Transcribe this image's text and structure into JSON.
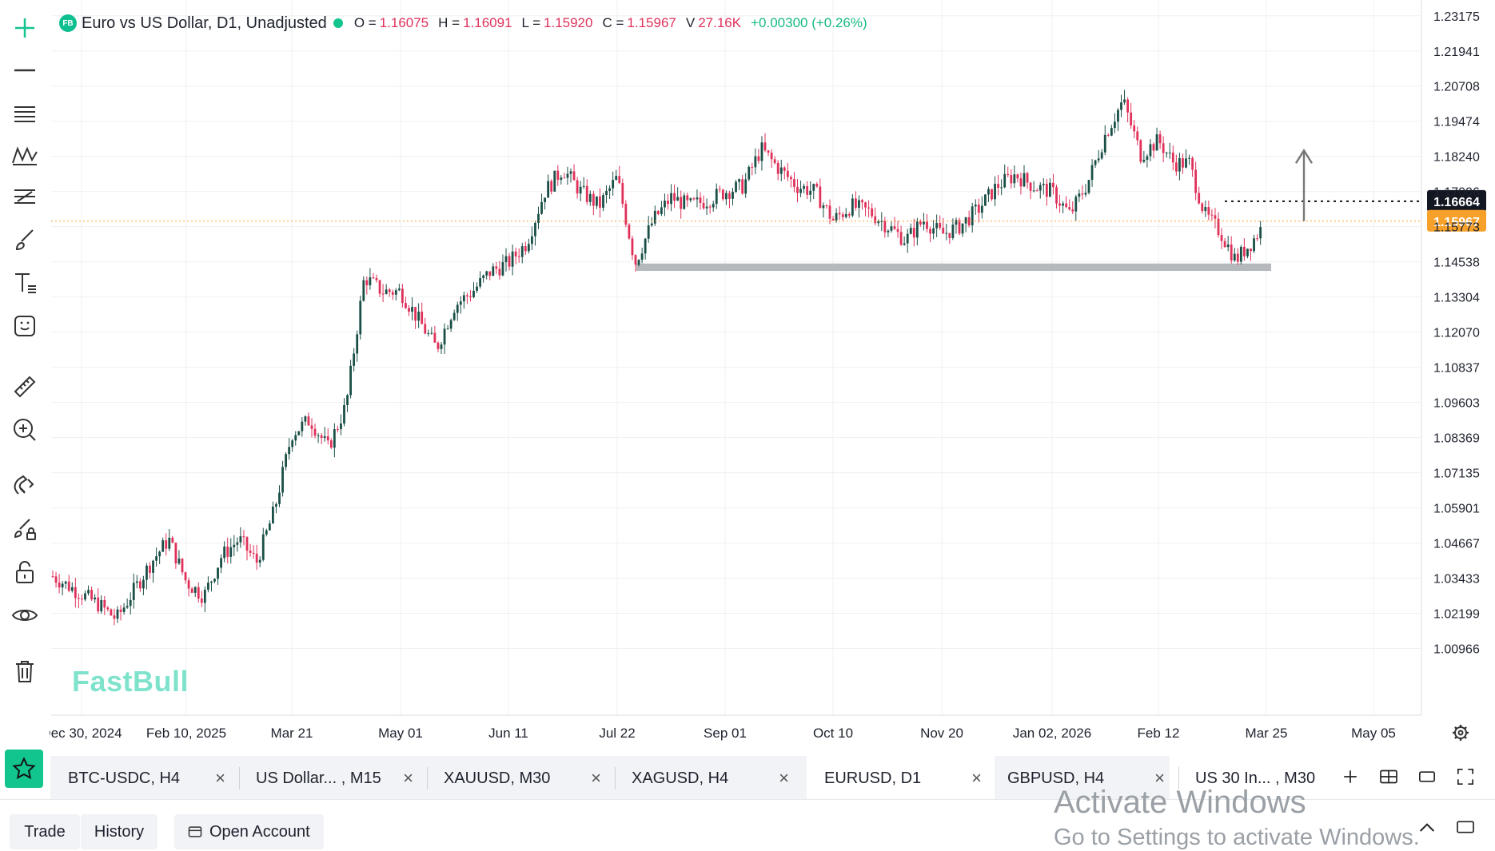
{
  "chart_data": {
    "type": "candlestick",
    "symbol_badge": "FB",
    "title": "Euro vs US Dollar, D1, Unadjusted",
    "ohlc": {
      "o_label": "O =",
      "o": "1.16075",
      "h_label": "H =",
      "h": "1.16091",
      "l_label": "L =",
      "l": "1.15920",
      "c_label": "C =",
      "c": "1.15967",
      "v_label": "V",
      "v": "27.16K",
      "change": "+0.00300 (+0.26%)"
    },
    "y_ticks": [
      "1.23175",
      "1.21941",
      "1.20708",
      "1.19474",
      "1.18240",
      "1.17006",
      "1.15773",
      "1.14538",
      "1.13304",
      "1.12070",
      "1.10837",
      "1.09603",
      "1.08369",
      "1.07135",
      "1.05901",
      "1.04667",
      "1.03433",
      "1.02199",
      "1.00966"
    ],
    "ylim": [
      0.9983,
      1.2345
    ],
    "x_ticks": [
      "Dec 30, 2024",
      "Feb 10, 2025",
      "Mar 21",
      "May 01",
      "Jun 11",
      "Jul 22",
      "Sep 01",
      "Oct 10",
      "Nov 20",
      "Jan 02, 2026",
      "Feb 12",
      "Mar 25",
      "May 05"
    ],
    "price_labels": {
      "target": "1.16664",
      "last": "1.15967"
    },
    "support_zone": {
      "from": "Jul 22",
      "to": "Mar 25",
      "low": 1.1422,
      "high": 1.1448
    },
    "arrow": {
      "at": "May 05",
      "from": 1.1597,
      "to": 1.1845
    },
    "path": [
      [
        "Dec 30, 2024",
        1.035
      ],
      [
        "Jan 06",
        1.025
      ],
      [
        "Jan 13",
        1.02
      ],
      [
        "Jan 20",
        1.03
      ],
      [
        "Jan 27",
        1.04
      ],
      [
        "Feb 03",
        1.048
      ],
      [
        "Feb 10, 2025",
        1.033
      ],
      [
        "Feb 17",
        1.028
      ],
      [
        "Feb 24",
        1.042
      ],
      [
        "Mar 03",
        1.048
      ],
      [
        "Mar 10",
        1.04
      ],
      [
        "Mar 17",
        1.058
      ],
      [
        "Mar 21",
        1.085
      ],
      [
        "Mar 28",
        1.09
      ],
      [
        "Apr 04",
        1.08
      ],
      [
        "Apr 11",
        1.095
      ],
      [
        "Apr 18",
        1.14
      ],
      [
        "Apr 25",
        1.135
      ],
      [
        "May 01",
        1.135
      ],
      [
        "May 08",
        1.125
      ],
      [
        "May 15",
        1.115
      ],
      [
        "May 22",
        1.13
      ],
      [
        "May 29",
        1.135
      ],
      [
        "Jun 05",
        1.142
      ],
      [
        "Jun 11",
        1.145
      ],
      [
        "Jun 18",
        1.152
      ],
      [
        "Jun 25",
        1.17
      ],
      [
        "Jul 02",
        1.178
      ],
      [
        "Jul 09",
        1.17
      ],
      [
        "Jul 16",
        1.165
      ],
      [
        "Jul 22",
        1.175
      ],
      [
        "Jul 29",
        1.145
      ],
      [
        "Aug 05",
        1.16
      ],
      [
        "Aug 12",
        1.168
      ],
      [
        "Aug 19",
        1.165
      ],
      [
        "Aug 26",
        1.167
      ],
      [
        "Sep 01",
        1.17
      ],
      [
        "Sep 08",
        1.172
      ],
      [
        "Sep 15",
        1.185
      ],
      [
        "Sep 22",
        1.178
      ],
      [
        "Sep 29",
        1.172
      ],
      [
        "Oct 06",
        1.17
      ],
      [
        "Oct 10",
        1.16
      ],
      [
        "Oct 17",
        1.165
      ],
      [
        "Oct 24",
        1.163
      ],
      [
        "Oct 31",
        1.158
      ],
      [
        "Nov 07",
        1.153
      ],
      [
        "Nov 14",
        1.16
      ],
      [
        "Nov 20",
        1.155
      ],
      [
        "Nov 27",
        1.158
      ],
      [
        "Dec 04",
        1.164
      ],
      [
        "Dec 11",
        1.172
      ],
      [
        "Dec 18",
        1.176
      ],
      [
        "Dec 25",
        1.172
      ],
      [
        "Jan 02, 2026",
        1.17
      ],
      [
        "Jan 09",
        1.162
      ],
      [
        "Jan 16",
        1.173
      ],
      [
        "Jan 23",
        1.19
      ],
      [
        "Jan 27",
        1.202
      ],
      [
        "Feb 03",
        1.183
      ],
      [
        "Feb 12",
        1.188
      ],
      [
        "Feb 19",
        1.18
      ],
      [
        "Feb 26",
        1.18
      ],
      [
        "Mar 05",
        1.162
      ],
      [
        "Mar 12",
        1.156
      ],
      [
        "Mar 18",
        1.146
      ],
      [
        "Mar 22",
        1.152
      ],
      [
        "Mar 25",
        1.1597
      ]
    ]
  },
  "watermark": "FastBull",
  "tabs": [
    {
      "label": "BTC-USDC, H4",
      "close": "×"
    },
    {
      "label": "US Dollar... , M15",
      "close": "×"
    },
    {
      "label": "XAUUSD, M30",
      "close": "×"
    },
    {
      "label": "XAGUSD, H4",
      "close": "×"
    },
    {
      "label": "EURUSD, D1",
      "close": "×"
    },
    {
      "label": "GBPUSD, H4",
      "close": "×"
    },
    {
      "label": "US 30 In... , M30",
      "close": ""
    }
  ],
  "bottom": {
    "trade": "Trade",
    "history": "History",
    "open_account": "Open Account"
  },
  "windows_notice": {
    "line1": "Activate Windows",
    "line2": "Go to Settings to activate Windows."
  },
  "icons": {
    "toolbar": [
      "crosshair-icon",
      "horizontal-line-icon",
      "lines-icon",
      "pattern-icon",
      "fib-icon",
      "brush-icon",
      "text-icon",
      "emoji-icon",
      "ruler-icon",
      "zoom-in-icon",
      "magnet-icon",
      "drawing-lock-icon",
      "lock-icon",
      "eye-icon",
      "trash-icon"
    ],
    "tabs_bar": [
      "star-icon",
      "plus-icon",
      "layout-icon",
      "window-icon",
      "fullscreen-icon",
      "gear-icon"
    ],
    "bottom": [
      "chevron-up-icon",
      "panel-icon"
    ]
  },
  "colors": {
    "up": "#1a4f47",
    "down": "#e0315a",
    "accent": "#12c48e",
    "last_price": "#f7a12b",
    "zone": "#b5b8bd"
  }
}
